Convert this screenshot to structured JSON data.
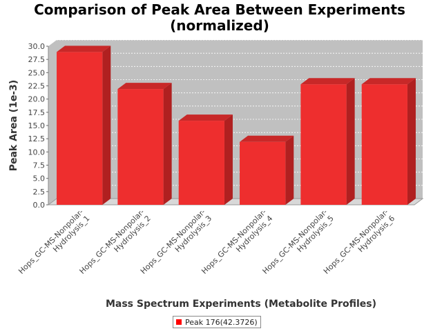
{
  "chart_data": {
    "type": "bar",
    "title": [
      "Comparison of Peak Area Between Experiments",
      "(normalized)"
    ],
    "xlabel": "Mass Spectrum Experiments (Metabolite Profiles)",
    "ylabel": "Peak Area (1e-3)",
    "ylim": [
      0,
      30
    ],
    "yticks": [
      "0.0",
      "2.5",
      "5.0",
      "7.5",
      "10.0",
      "12.5",
      "15.0",
      "17.5",
      "20.0",
      "22.5",
      "25.0",
      "27.5",
      "30.0"
    ],
    "categories": [
      [
        "Hops_GC-MS-Nonpolar-",
        "Hydrolysis_1"
      ],
      [
        "Hops_GC-MS-Nonpolar-",
        "Hydrolysis_2"
      ],
      [
        "Hops_GC-MS-Nonpolar-",
        "Hydrolysis_3"
      ],
      [
        "Hops_GC-MS-Nonpolar-",
        "Hydrolysis_4"
      ],
      [
        "Hops_GC-MS-Nonpolar-",
        "Hydrolysis_5"
      ],
      [
        "Hops_GC-MS-Nonpolar-",
        "Hydrolysis_6"
      ]
    ],
    "series": [
      {
        "name": "Peak 176(42.3726)",
        "color": "#ff0000",
        "values": [
          28.9,
          21.9,
          15.9,
          11.9,
          22.8,
          22.8
        ]
      }
    ],
    "grid": true,
    "legend_position": "bottom"
  },
  "colors": {
    "plot_background": "#c0c0c0",
    "bar_front": "#ee2e2e",
    "bar_side": "#b02020",
    "bar_top": "#c82828"
  }
}
